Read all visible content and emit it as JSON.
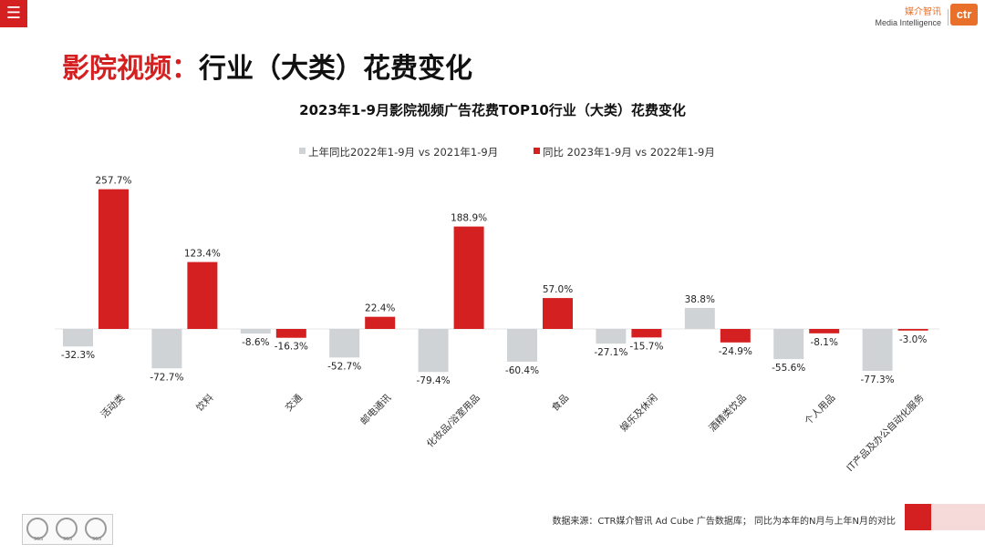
{
  "header": {
    "menu_icon": "hamburger-icon",
    "brand_cn": "媒介智讯",
    "brand_en": "Media Intelligence",
    "logo_text": "ctr"
  },
  "page_title": {
    "prefix": "影院视频：",
    "main": "行业（大类）花费变化"
  },
  "chart_data": {
    "type": "bar",
    "title": "2023年1-9月影院视频广告花费TOP10行业（大类）花费变化",
    "categories": [
      "活动类",
      "饮料",
      "交通",
      "邮电通讯",
      "化妆品/浴室用品",
      "食品",
      "娱乐及休闲",
      "酒精类饮品",
      "个人用品",
      "IT产品及办公自动化服务"
    ],
    "series": [
      {
        "name": "上年同比2022年1-9月 vs 2021年1-9月",
        "color": "#cfd3d6",
        "values": [
          -32.3,
          -72.7,
          -8.6,
          -52.7,
          -79.4,
          -60.4,
          -27.1,
          38.8,
          -55.6,
          -77.3
        ]
      },
      {
        "name": "同比 2023年1-9月 vs 2022年1-9月",
        "color": "#d42020",
        "values": [
          257.7,
          123.4,
          -16.3,
          22.4,
          188.9,
          57.0,
          -15.7,
          -24.9,
          -8.1,
          -3.0
        ]
      }
    ],
    "value_labels": [
      [
        "-32.3%",
        "-72.7%",
        "-8.6%",
        "-52.7%",
        "-79.4%",
        "-60.4%",
        "-27.1%",
        "38.8%",
        "-55.6%",
        "-77.3%"
      ],
      [
        "257.7%",
        "123.4%",
        "-16.3%",
        "22.4%",
        "188.9%",
        "57.0%",
        "-15.7%",
        "-24.9%",
        "-8.1%",
        "-3.0%"
      ]
    ],
    "legend_position": "top",
    "unit": "%"
  },
  "footer": {
    "source": "数据来源：CTR媒介智讯 Ad Cube 广告数据库；  同比为本年的N月与上年N月的对比",
    "cert_label": "SGS"
  }
}
